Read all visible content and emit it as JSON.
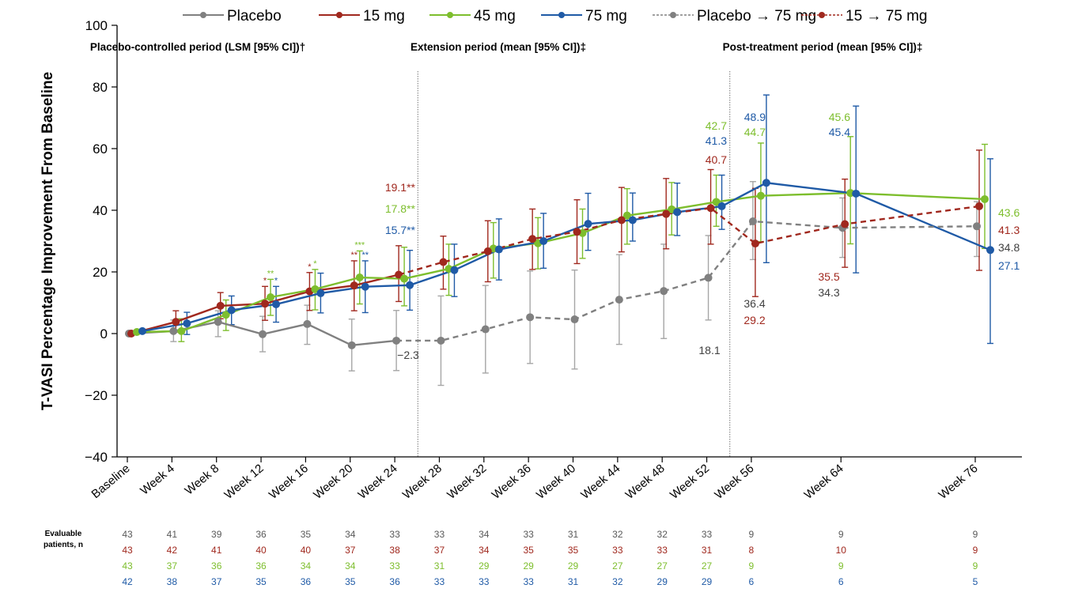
{
  "chart_data": {
    "type": "line",
    "title": "",
    "ylabel": "T-VASI Percentage Improvement From Baseline",
    "xlabel": "",
    "ylim": [
      -40,
      100
    ],
    "yticks": [
      -40,
      -20,
      0,
      20,
      40,
      60,
      80,
      100
    ],
    "ytick_labels": [
      "−40",
      "−20",
      "0",
      "20",
      "40",
      "60",
      "80",
      "100"
    ],
    "grid": false,
    "legend_position": "top",
    "categories": [
      "Baseline",
      "Week 4",
      "Week 8",
      "Week 12",
      "Week 16",
      "Week 20",
      "Week 24",
      "Week 28",
      "Week 32",
      "Week 36",
      "Week 40",
      "Week 44",
      "Week 48",
      "Week 52",
      "Week 56",
      "Week 64",
      "Week 76"
    ],
    "x_weeks": [
      0,
      4,
      8,
      12,
      16,
      20,
      24,
      28,
      32,
      36,
      40,
      44,
      48,
      52,
      56,
      64,
      76
    ],
    "periods": [
      {
        "label": "Placebo-controlled period (LSM [95% CI])†",
        "start_week": 0,
        "end_week": 26
      },
      {
        "label": "Extension period (mean [95% CI])‡",
        "start_week": 26,
        "end_week": 54
      },
      {
        "label": "Post-treatment period (mean [95% CI])‡",
        "start_week": 54,
        "end_week": 78
      }
    ],
    "legend": [
      {
        "name": "Placebo",
        "color": "#808080",
        "dashed": false
      },
      {
        "name": "15 mg",
        "color": "#A0281E",
        "dashed": false
      },
      {
        "name": "45 mg",
        "color": "#7DBE2D",
        "dashed": false
      },
      {
        "name": "75 mg",
        "color": "#1F5AA6",
        "dashed": false
      },
      {
        "name": "Placebo → 75 mg",
        "color": "#808080",
        "dashed": true
      },
      {
        "name": "15 → 75 mg",
        "color": "#A0281E",
        "dashed": true
      }
    ],
    "series": [
      {
        "name": "Placebo",
        "color": "#808080",
        "dashed": false,
        "points": [
          {
            "week": 0,
            "y": 0,
            "lo": null,
            "hi": null
          },
          {
            "week": 4,
            "y": 0.8,
            "lo": -2.6,
            "hi": 4.4
          },
          {
            "week": 8,
            "y": 3.8,
            "lo": -1.0,
            "hi": 7.4
          },
          {
            "week": 12,
            "y": -0.2,
            "lo": -5.9,
            "hi": 5.6
          },
          {
            "week": 16,
            "y": 3.1,
            "lo": -3.5,
            "hi": 9.2
          },
          {
            "week": 20,
            "y": -3.8,
            "lo": -12.1,
            "hi": 4.7
          },
          {
            "week": 24,
            "y": -2.3,
            "lo": -12.0,
            "hi": 7.5
          }
        ]
      },
      {
        "name": "15 mg",
        "color": "#A0281E",
        "dashed": false,
        "points": [
          {
            "week": 0,
            "y": 0,
            "lo": null,
            "hi": null
          },
          {
            "week": 4,
            "y": 3.8,
            "lo": 0.5,
            "hi": 7.4
          },
          {
            "week": 8,
            "y": 9.0,
            "lo": 4.8,
            "hi": 13.3
          },
          {
            "week": 12,
            "y": 9.7,
            "lo": 4.3,
            "hi": 15.3
          },
          {
            "week": 16,
            "y": 13.7,
            "lo": 7.5,
            "hi": 19.8
          },
          {
            "week": 20,
            "y": 15.6,
            "lo": 7.4,
            "hi": 23.6
          },
          {
            "week": 24,
            "y": 19.1,
            "lo": 10.4,
            "hi": 28.5
          }
        ]
      },
      {
        "name": "45 mg",
        "color": "#7DBE2D",
        "dashed": false,
        "points": [
          {
            "week": 0,
            "y": 0.5,
            "lo": null,
            "hi": null
          },
          {
            "week": 4,
            "y": 0.8,
            "lo": -2.6,
            "hi": 4.8
          },
          {
            "week": 8,
            "y": 6.1,
            "lo": 1.0,
            "hi": 10.9
          },
          {
            "week": 12,
            "y": 11.8,
            "lo": 5.9,
            "hi": 17.6
          },
          {
            "week": 16,
            "y": 14.4,
            "lo": 7.7,
            "hi": 20.8
          },
          {
            "week": 20,
            "y": 18.2,
            "lo": 9.6,
            "hi": 26.8
          },
          {
            "week": 24,
            "y": 17.8,
            "lo": 9.0,
            "hi": 28.0
          },
          {
            "week": 28,
            "y": 21.0,
            "lo": 12.4,
            "hi": 29.0
          },
          {
            "week": 32,
            "y": 27.6,
            "lo": 18.0,
            "hi": 36.0
          },
          {
            "week": 36,
            "y": 29.3,
            "lo": 21.0,
            "hi": 37.6
          },
          {
            "week": 40,
            "y": 32.6,
            "lo": 24.4,
            "hi": 40.4
          },
          {
            "week": 44,
            "y": 38.3,
            "lo": 29.0,
            "hi": 47.0
          },
          {
            "week": 48,
            "y": 40.3,
            "lo": 32.0,
            "hi": 49.0
          },
          {
            "week": 52,
            "y": 42.7,
            "lo": 34.8,
            "hi": 51.4
          },
          {
            "week": 56,
            "y": 44.7,
            "lo": 29.8,
            "hi": 61.8
          },
          {
            "week": 64,
            "y": 45.6,
            "lo": 29.1,
            "hi": 63.9
          },
          {
            "week": 76,
            "y": 43.6,
            "lo": 27.6,
            "hi": 61.4
          }
        ]
      },
      {
        "name": "75 mg",
        "color": "#1F5AA6",
        "dashed": false,
        "points": [
          {
            "week": 0,
            "y": 0.8,
            "lo": null,
            "hi": null
          },
          {
            "week": 4,
            "y": 3.3,
            "lo": -0.3,
            "hi": 6.9
          },
          {
            "week": 8,
            "y": 7.6,
            "lo": 2.9,
            "hi": 12.2
          },
          {
            "week": 12,
            "y": 9.5,
            "lo": 3.7,
            "hi": 15.3
          },
          {
            "week": 16,
            "y": 13.1,
            "lo": 6.7,
            "hi": 19.6
          },
          {
            "week": 20,
            "y": 15.2,
            "lo": 6.8,
            "hi": 23.6
          },
          {
            "week": 24,
            "y": 15.7,
            "lo": 7.6,
            "hi": 27.0
          },
          {
            "week": 28,
            "y": 20.6,
            "lo": 12.0,
            "hi": 29.0
          },
          {
            "week": 32,
            "y": 27.3,
            "lo": 17.4,
            "hi": 37.2
          },
          {
            "week": 36,
            "y": 30.0,
            "lo": 21.2,
            "hi": 39.0
          },
          {
            "week": 40,
            "y": 35.6,
            "lo": 27.0,
            "hi": 45.5
          },
          {
            "week": 44,
            "y": 36.8,
            "lo": 30.0,
            "hi": 45.6
          },
          {
            "week": 48,
            "y": 39.4,
            "lo": 31.8,
            "hi": 48.8
          },
          {
            "week": 52,
            "y": 41.3,
            "lo": 33.8,
            "hi": 51.4
          },
          {
            "week": 56,
            "y": 48.9,
            "lo": 23.0,
            "hi": 77.4
          },
          {
            "week": 64,
            "y": 45.4,
            "lo": 19.7,
            "hi": 73.8
          },
          {
            "week": 76,
            "y": 27.1,
            "lo": -3.2,
            "hi": 56.7
          }
        ]
      },
      {
        "name": "Placebo → 75 mg",
        "color": "#808080",
        "dashed": true,
        "points": [
          {
            "week": 24,
            "y": -2.3,
            "lo": null,
            "hi": null
          },
          {
            "week": 28,
            "y": -2.3,
            "lo": -16.8,
            "hi": 12.2
          },
          {
            "week": 32,
            "y": 1.4,
            "lo": -12.8,
            "hi": 15.6
          },
          {
            "week": 36,
            "y": 5.3,
            "lo": -9.7,
            "hi": 20.3
          },
          {
            "week": 40,
            "y": 4.6,
            "lo": -11.5,
            "hi": 20.6
          },
          {
            "week": 44,
            "y": 11.0,
            "lo": -3.5,
            "hi": 25.6
          },
          {
            "week": 48,
            "y": 13.8,
            "lo": -1.6,
            "hi": 29.0
          },
          {
            "week": 52,
            "y": 18.1,
            "lo": 4.4,
            "hi": 31.8
          },
          {
            "week": 56,
            "y": 36.4,
            "lo": 24.0,
            "hi": 49.3
          },
          {
            "week": 64,
            "y": 34.3,
            "lo": 24.7,
            "hi": 44.0
          },
          {
            "week": 76,
            "y": 34.8,
            "lo": 25.0,
            "hi": 42.8
          }
        ]
      },
      {
        "name": "15 → 75 mg",
        "color": "#A0281E",
        "dashed": true,
        "points": [
          {
            "week": 24,
            "y": 19.1,
            "lo": null,
            "hi": null
          },
          {
            "week": 28,
            "y": 23.2,
            "lo": 14.4,
            "hi": 31.6
          },
          {
            "week": 32,
            "y": 26.7,
            "lo": 16.8,
            "hi": 36.6
          },
          {
            "week": 36,
            "y": 30.7,
            "lo": 20.8,
            "hi": 40.4
          },
          {
            "week": 40,
            "y": 33.0,
            "lo": 22.7,
            "hi": 43.4
          },
          {
            "week": 44,
            "y": 36.8,
            "lo": 26.5,
            "hi": 47.4
          },
          {
            "week": 48,
            "y": 38.8,
            "lo": 27.5,
            "hi": 50.3
          },
          {
            "week": 52,
            "y": 40.7,
            "lo": 29.0,
            "hi": 53.2
          },
          {
            "week": 56,
            "y": 29.2,
            "lo": 12.0,
            "hi": 47.1
          },
          {
            "week": 64,
            "y": 35.5,
            "lo": 21.5,
            "hi": 50.1
          },
          {
            "week": 76,
            "y": 41.3,
            "lo": 20.5,
            "hi": 59.5
          }
        ]
      }
    ],
    "significance": [
      {
        "series": "15 mg",
        "week": 12,
        "text": "*"
      },
      {
        "series": "45 mg",
        "week": 12,
        "text": "**"
      },
      {
        "series": "75 mg",
        "week": 12,
        "text": "*"
      },
      {
        "series": "15 mg",
        "week": 16,
        "text": "*"
      },
      {
        "series": "45 mg",
        "week": 16,
        "text": "*"
      },
      {
        "series": "15 mg",
        "week": 20,
        "text": "**"
      },
      {
        "series": "45 mg",
        "week": 20,
        "text": "***"
      },
      {
        "series": "75 mg",
        "week": 20,
        "text": "**"
      }
    ],
    "annotations": [
      {
        "text": "19.1**",
        "series": "15 mg",
        "week": 24,
        "placement": "above-left"
      },
      {
        "text": "17.8**",
        "series": "45 mg",
        "week": 24,
        "placement": "above-left"
      },
      {
        "text": "15.7**",
        "series": "75 mg",
        "week": 24,
        "placement": "above-left"
      },
      {
        "text": "−2.3",
        "series": "Placebo",
        "week": 24,
        "placement": "below"
      },
      {
        "text": "42.7",
        "series": "45 mg",
        "week": 52,
        "placement": "above"
      },
      {
        "text": "41.3",
        "series": "75 mg",
        "week": 52,
        "placement": "above"
      },
      {
        "text": "40.7",
        "series": "15 → 75 mg",
        "week": 52,
        "placement": "above"
      },
      {
        "text": "18.1",
        "series": "Placebo → 75 mg",
        "week": 52,
        "placement": "below"
      },
      {
        "text": "48.9",
        "series": "75 mg",
        "week": 56,
        "placement": "above"
      },
      {
        "text": "44.7",
        "series": "45 mg",
        "week": 56,
        "placement": "above"
      },
      {
        "text": "36.4",
        "series": "Placebo → 75 mg",
        "week": 56,
        "placement": "below"
      },
      {
        "text": "29.2",
        "series": "15 → 75 mg",
        "week": 56,
        "placement": "below"
      },
      {
        "text": "45.6",
        "series": "45 mg",
        "week": 64,
        "placement": "above"
      },
      {
        "text": "45.4",
        "series": "75 mg",
        "week": 64,
        "placement": "above"
      },
      {
        "text": "35.5",
        "series": "15 → 75 mg",
        "week": 64,
        "placement": "below"
      },
      {
        "text": "34.3",
        "series": "Placebo → 75 mg",
        "week": 64,
        "placement": "below"
      },
      {
        "text": "43.6",
        "series": "45 mg",
        "week": 76,
        "placement": "right"
      },
      {
        "text": "41.3",
        "series": "15 → 75 mg",
        "week": 76,
        "placement": "right"
      },
      {
        "text": "34.8",
        "series": "Placebo → 75 mg",
        "week": 76,
        "placement": "right"
      },
      {
        "text": "27.1",
        "series": "75 mg",
        "week": 76,
        "placement": "right"
      }
    ],
    "patients_table": {
      "label_line1": "Evaluable",
      "label_line2": "patients, n",
      "rows": [
        {
          "color": "#595959",
          "values": [
            "43",
            "41",
            "39",
            "36",
            "35",
            "34",
            "33",
            "33",
            "34",
            "33",
            "31",
            "32",
            "32",
            "33",
            "9",
            "9",
            "9"
          ]
        },
        {
          "color": "#A0281E",
          "values": [
            "43",
            "42",
            "41",
            "40",
            "40",
            "37",
            "38",
            "37",
            "34",
            "35",
            "35",
            "33",
            "33",
            "31",
            "8",
            "10",
            "9"
          ]
        },
        {
          "color": "#7DBE2D",
          "values": [
            "43",
            "37",
            "36",
            "36",
            "34",
            "34",
            "33",
            "31",
            "29",
            "29",
            "29",
            "27",
            "27",
            "27",
            "9",
            "9",
            "9"
          ]
        },
        {
          "color": "#1F5AA6",
          "values": [
            "42",
            "38",
            "37",
            "35",
            "36",
            "35",
            "36",
            "33",
            "33",
            "33",
            "31",
            "32",
            "29",
            "29",
            "6",
            "6",
            "5"
          ]
        }
      ]
    }
  }
}
